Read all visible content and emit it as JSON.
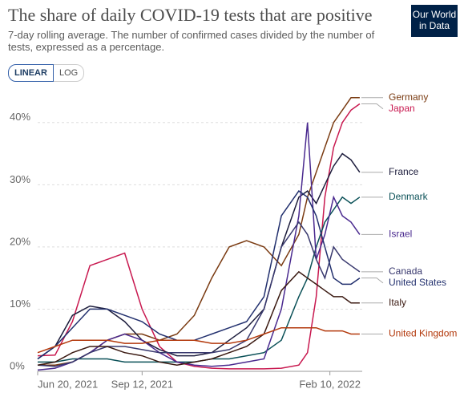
{
  "chart_data": {
    "type": "line",
    "title": "The share of daily COVID-19 tests that are positive",
    "subtitle": "7-day rolling average. The number of confirmed cases divided by the number of tests, expressed as a percentage.",
    "logo": "Our World in Data",
    "scale_buttons": [
      "LINEAR",
      "LOG"
    ],
    "log_scale": false,
    "grid": true,
    "x": [
      "2021-06-20",
      "2021-07-04",
      "2021-07-18",
      "2021-08-01",
      "2021-08-15",
      "2021-08-29",
      "2021-09-12",
      "2021-09-26",
      "2021-10-10",
      "2021-10-24",
      "2021-11-07",
      "2021-11-21",
      "2021-12-05",
      "2021-12-19",
      "2022-01-02",
      "2022-01-16",
      "2022-01-23",
      "2022-01-30",
      "2022-02-06",
      "2022-02-13",
      "2022-02-20",
      "2022-02-27",
      "2022-03-06"
    ],
    "xlim": [
      "2021-06-20",
      "2022-03-08"
    ],
    "xticks": [
      {
        "value": "2021-06-20",
        "label": "Jun 20, 2021"
      },
      {
        "value": "2021-09-12",
        "label": "Sep 12, 2021"
      },
      {
        "value": "2022-02-10",
        "label": "Feb 10, 2022"
      }
    ],
    "ylim": [
      0,
      45
    ],
    "yticks": [
      {
        "value": 0,
        "label": "0%"
      },
      {
        "value": 10,
        "label": "10%"
      },
      {
        "value": 20,
        "label": "20%"
      },
      {
        "value": 30,
        "label": "30%"
      },
      {
        "value": 40,
        "label": "40%"
      }
    ],
    "series": [
      {
        "name": "Germany",
        "color": "#7a3b12",
        "values": [
          1,
          1,
          1.5,
          3,
          5,
          6,
          6,
          5,
          6,
          9,
          15,
          20,
          21,
          20,
          17,
          22,
          28,
          32,
          36,
          40,
          42,
          44,
          44
        ]
      },
      {
        "name": "Japan",
        "color": "#c8184f",
        "values": [
          2.5,
          2.6,
          8,
          17,
          18,
          19,
          10,
          4,
          1.5,
          0.8,
          0.5,
          0.4,
          0.4,
          0.4,
          0.5,
          1,
          3,
          12,
          28,
          36,
          40,
          42,
          43
        ]
      },
      {
        "name": "France",
        "color": "#1c1c3c",
        "values": [
          2,
          4,
          9,
          10.5,
          10,
          8,
          5,
          3.5,
          2.5,
          2.5,
          3,
          5,
          7,
          10,
          20,
          28,
          29,
          27,
          30,
          33,
          35,
          34,
          32
        ]
      },
      {
        "name": "Denmark",
        "color": "#0b5158",
        "values": [
          1.5,
          1.5,
          2,
          2,
          2,
          1.5,
          1.5,
          1.5,
          1.5,
          1.5,
          2,
          2,
          2.5,
          3,
          5,
          12,
          15,
          20,
          24,
          26,
          28,
          27,
          28
        ]
      },
      {
        "name": "Israel",
        "color": "#4a2a8f",
        "values": [
          0.2,
          0.5,
          1.5,
          3,
          5,
          6,
          5,
          3,
          1.5,
          1,
          0.8,
          1,
          1.5,
          2,
          10,
          25,
          40,
          18,
          22,
          28,
          25,
          24,
          22
        ]
      },
      {
        "name": "Canada",
        "color": "#38386e",
        "values": [
          1,
          0.8,
          1.5,
          3,
          4,
          4,
          3.5,
          3,
          3,
          3,
          3,
          3.5,
          5,
          10,
          20,
          24,
          22,
          18,
          15,
          20,
          18,
          17,
          16
        ]
      },
      {
        "name": "United States",
        "color": "#22306e",
        "values": [
          2,
          4,
          7,
          10,
          10,
          9,
          8,
          6,
          5,
          5,
          6,
          7,
          8,
          12,
          25,
          29,
          28,
          25,
          20,
          15,
          14,
          14,
          15
        ]
      },
      {
        "name": "Italy",
        "color": "#3b1a12",
        "values": [
          1,
          1.5,
          3,
          4,
          4,
          3,
          2.5,
          1.5,
          1,
          1.5,
          2,
          3,
          4,
          6,
          13,
          16,
          15,
          14,
          13,
          12,
          12,
          11,
          11
        ]
      },
      {
        "name": "United Kingdom",
        "color": "#b3390c",
        "values": [
          3,
          4,
          5,
          5,
          5,
          4.5,
          4.5,
          5,
          5,
          5,
          4.5,
          4.5,
          5,
          6,
          7,
          7,
          7,
          7,
          6.5,
          6.5,
          6.5,
          6,
          6
        ]
      }
    ]
  }
}
